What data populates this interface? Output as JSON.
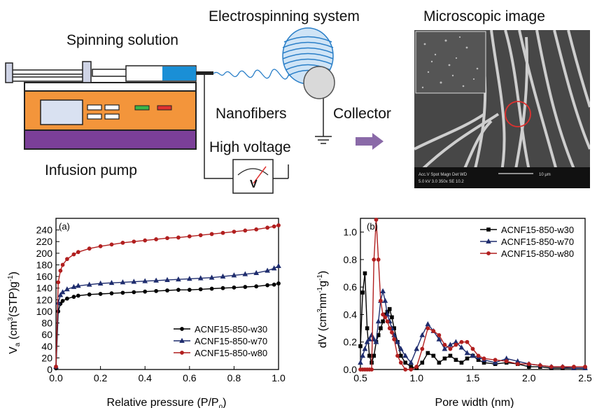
{
  "schematic": {
    "electrospinning_title": "Electrospinning system",
    "microscopic_title": "Microscopic image",
    "spinning_solution": "Spinning solution",
    "nanofibers": "Nanofibers",
    "collector": "Collector",
    "high_voltage": "High voltage",
    "infusion_pump": "Infusion pump",
    "voltmeter_symbol": "V",
    "sem_scale_text": "10 μm",
    "sem_info_line1": "Acc.V  Spot Magn   Det  WD",
    "sem_info_line2": "5.0 kV 3.0  350x    SE  10.2",
    "colors": {
      "pump_orange": "#f3953b",
      "pump_base": "#7b3f98",
      "syringe_blue": "#1a8fd6",
      "fiber_blue": "#2a7fc8",
      "arrow_purple": "#8a6aa8"
    }
  },
  "chart_data": [
    {
      "type": "line",
      "panel_label": "(a)",
      "xlabel": "Relative pressure (P/P",
      "xlabel_sub": "o",
      "xlabel_end": ")",
      "ylabel_main": "V",
      "ylabel_sub": "a",
      "ylabel_rest": " (cm",
      "ylabel_sup": "3",
      "ylabel_rest2": "(STP)g",
      "ylabel_sup2": "-1",
      "ylabel_end": ")",
      "xlim": [
        0.0,
        1.0
      ],
      "ylim": [
        0,
        260
      ],
      "xticks": [
        "0.0",
        "0.2",
        "0.4",
        "0.6",
        "0.8",
        "1.0"
      ],
      "yticks": [
        "0",
        "20",
        "40",
        "60",
        "80",
        "100",
        "120",
        "140",
        "160",
        "180",
        "200",
        "220",
        "240"
      ],
      "legend_position": "bottom-right",
      "series": [
        {
          "name": "ACNF15-850-w30",
          "color": "#000000",
          "marker": "circle",
          "x": [
            0.0,
            0.01,
            0.02,
            0.03,
            0.05,
            0.08,
            0.1,
            0.15,
            0.2,
            0.25,
            0.3,
            0.35,
            0.4,
            0.45,
            0.5,
            0.55,
            0.6,
            0.65,
            0.7,
            0.75,
            0.8,
            0.85,
            0.9,
            0.95,
            0.98,
            1.0
          ],
          "y": [
            2,
            100,
            113,
            118,
            122,
            125,
            127,
            129,
            130,
            131,
            132,
            133,
            134,
            135,
            136,
            137,
            137,
            138,
            139,
            140,
            141,
            142,
            143,
            145,
            146,
            148
          ]
        },
        {
          "name": "ACNF15-850-w70",
          "color": "#1f2d6e",
          "marker": "triangle",
          "x": [
            0.0,
            0.01,
            0.02,
            0.03,
            0.05,
            0.08,
            0.1,
            0.15,
            0.2,
            0.25,
            0.3,
            0.35,
            0.4,
            0.45,
            0.5,
            0.55,
            0.6,
            0.65,
            0.7,
            0.75,
            0.8,
            0.85,
            0.9,
            0.95,
            0.98,
            1.0
          ],
          "y": [
            5,
            115,
            128,
            133,
            138,
            142,
            144,
            146,
            148,
            149,
            150,
            151,
            152,
            153,
            154,
            155,
            156,
            157,
            158,
            160,
            162,
            164,
            166,
            170,
            174,
            178
          ]
        },
        {
          "name": "ACNF15-850-w80",
          "color": "#b11f1f",
          "marker": "circle",
          "x": [
            0.0,
            0.01,
            0.02,
            0.03,
            0.05,
            0.08,
            0.1,
            0.15,
            0.2,
            0.25,
            0.3,
            0.35,
            0.4,
            0.45,
            0.5,
            0.55,
            0.6,
            0.65,
            0.7,
            0.75,
            0.8,
            0.85,
            0.9,
            0.95,
            0.98,
            1.0
          ],
          "y": [
            5,
            150,
            170,
            180,
            190,
            198,
            202,
            208,
            212,
            215,
            218,
            220,
            222,
            224,
            226,
            227,
            229,
            231,
            233,
            235,
            237,
            239,
            241,
            244,
            246,
            248
          ]
        }
      ]
    },
    {
      "type": "line",
      "panel_label": "(b)",
      "xlabel": "Pore width (nm)",
      "ylabel_main": "dV (cm",
      "ylabel_sup": "3",
      "ylabel_rest": "nm",
      "ylabel_sup2": "-1",
      "ylabel_rest2": "g",
      "ylabel_sup3": "-1",
      "ylabel_end": ")",
      "xlim": [
        0.5,
        2.5
      ],
      "ylim": [
        0.0,
        1.1
      ],
      "xticks": [
        "0.5",
        "1.0",
        "1.5",
        "2.0",
        "2.5"
      ],
      "yticks": [
        "0.0",
        "0.2",
        "0.4",
        "0.6",
        "0.8",
        "1.0"
      ],
      "legend_position": "top-right",
      "series": [
        {
          "name": "ACNF15-850-w30",
          "color": "#000000",
          "marker": "square",
          "x": [
            0.5,
            0.52,
            0.54,
            0.56,
            0.58,
            0.6,
            0.62,
            0.64,
            0.66,
            0.68,
            0.7,
            0.72,
            0.74,
            0.76,
            0.78,
            0.8,
            0.83,
            0.86,
            0.9,
            0.95,
            1.0,
            1.05,
            1.1,
            1.15,
            1.2,
            1.25,
            1.3,
            1.35,
            1.4,
            1.45,
            1.5,
            1.55,
            1.6,
            1.7,
            1.8,
            1.9,
            2.0,
            2.1,
            2.2,
            2.3,
            2.4,
            2.5
          ],
          "y": [
            0.17,
            0.56,
            0.7,
            0.3,
            0.1,
            0.05,
            0.1,
            0.2,
            0.25,
            0.3,
            0.35,
            0.4,
            0.42,
            0.44,
            0.38,
            0.3,
            0.2,
            0.1,
            0.05,
            0.02,
            0.01,
            0.05,
            0.12,
            0.1,
            0.05,
            0.08,
            0.1,
            0.07,
            0.05,
            0.08,
            0.1,
            0.07,
            0.05,
            0.04,
            0.05,
            0.04,
            0.02,
            0.02,
            0.01,
            0.01,
            0.01,
            0.01
          ]
        },
        {
          "name": "ACNF15-850-w70",
          "color": "#1f2d6e",
          "marker": "triangle",
          "x": [
            0.5,
            0.52,
            0.54,
            0.56,
            0.58,
            0.6,
            0.62,
            0.64,
            0.66,
            0.68,
            0.7,
            0.72,
            0.74,
            0.76,
            0.78,
            0.8,
            0.83,
            0.86,
            0.9,
            0.95,
            1.0,
            1.05,
            1.1,
            1.15,
            1.2,
            1.25,
            1.3,
            1.35,
            1.4,
            1.45,
            1.5,
            1.55,
            1.6,
            1.7,
            1.8,
            1.9,
            2.0,
            2.1,
            2.2,
            2.3,
            2.4,
            2.5
          ],
          "y": [
            0.05,
            0.1,
            0.15,
            0.2,
            0.22,
            0.25,
            0.22,
            0.2,
            0.35,
            0.5,
            0.57,
            0.5,
            0.4,
            0.35,
            0.3,
            0.25,
            0.2,
            0.15,
            0.1,
            0.05,
            0.15,
            0.25,
            0.33,
            0.28,
            0.22,
            0.15,
            0.18,
            0.2,
            0.16,
            0.12,
            0.1,
            0.09,
            0.07,
            0.05,
            0.08,
            0.06,
            0.04,
            0.03,
            0.02,
            0.02,
            0.01,
            0.01
          ]
        },
        {
          "name": "ACNF15-850-w80",
          "color": "#b11f1f",
          "marker": "circle",
          "x": [
            0.5,
            0.52,
            0.54,
            0.56,
            0.58,
            0.6,
            0.62,
            0.64,
            0.66,
            0.68,
            0.7,
            0.72,
            0.74,
            0.76,
            0.78,
            0.8,
            0.83,
            0.86,
            0.9,
            0.95,
            1.0,
            1.05,
            1.1,
            1.15,
            1.2,
            1.25,
            1.3,
            1.35,
            1.4,
            1.45,
            1.5,
            1.55,
            1.6,
            1.7,
            1.8,
            1.9,
            2.0,
            2.1,
            2.2,
            2.3,
            2.4,
            2.5
          ],
          "y": [
            0.0,
            0.0,
            0.0,
            0.0,
            0.0,
            0.0,
            0.8,
            1.09,
            0.8,
            0.5,
            0.4,
            0.38,
            0.35,
            0.3,
            0.27,
            0.22,
            0.1,
            0.05,
            0.0,
            0.0,
            0.02,
            0.15,
            0.3,
            0.28,
            0.25,
            0.18,
            0.15,
            0.18,
            0.2,
            0.2,
            0.15,
            0.1,
            0.08,
            0.07,
            0.06,
            0.04,
            0.04,
            0.03,
            0.02,
            0.02,
            0.02,
            0.02
          ]
        }
      ]
    }
  ]
}
